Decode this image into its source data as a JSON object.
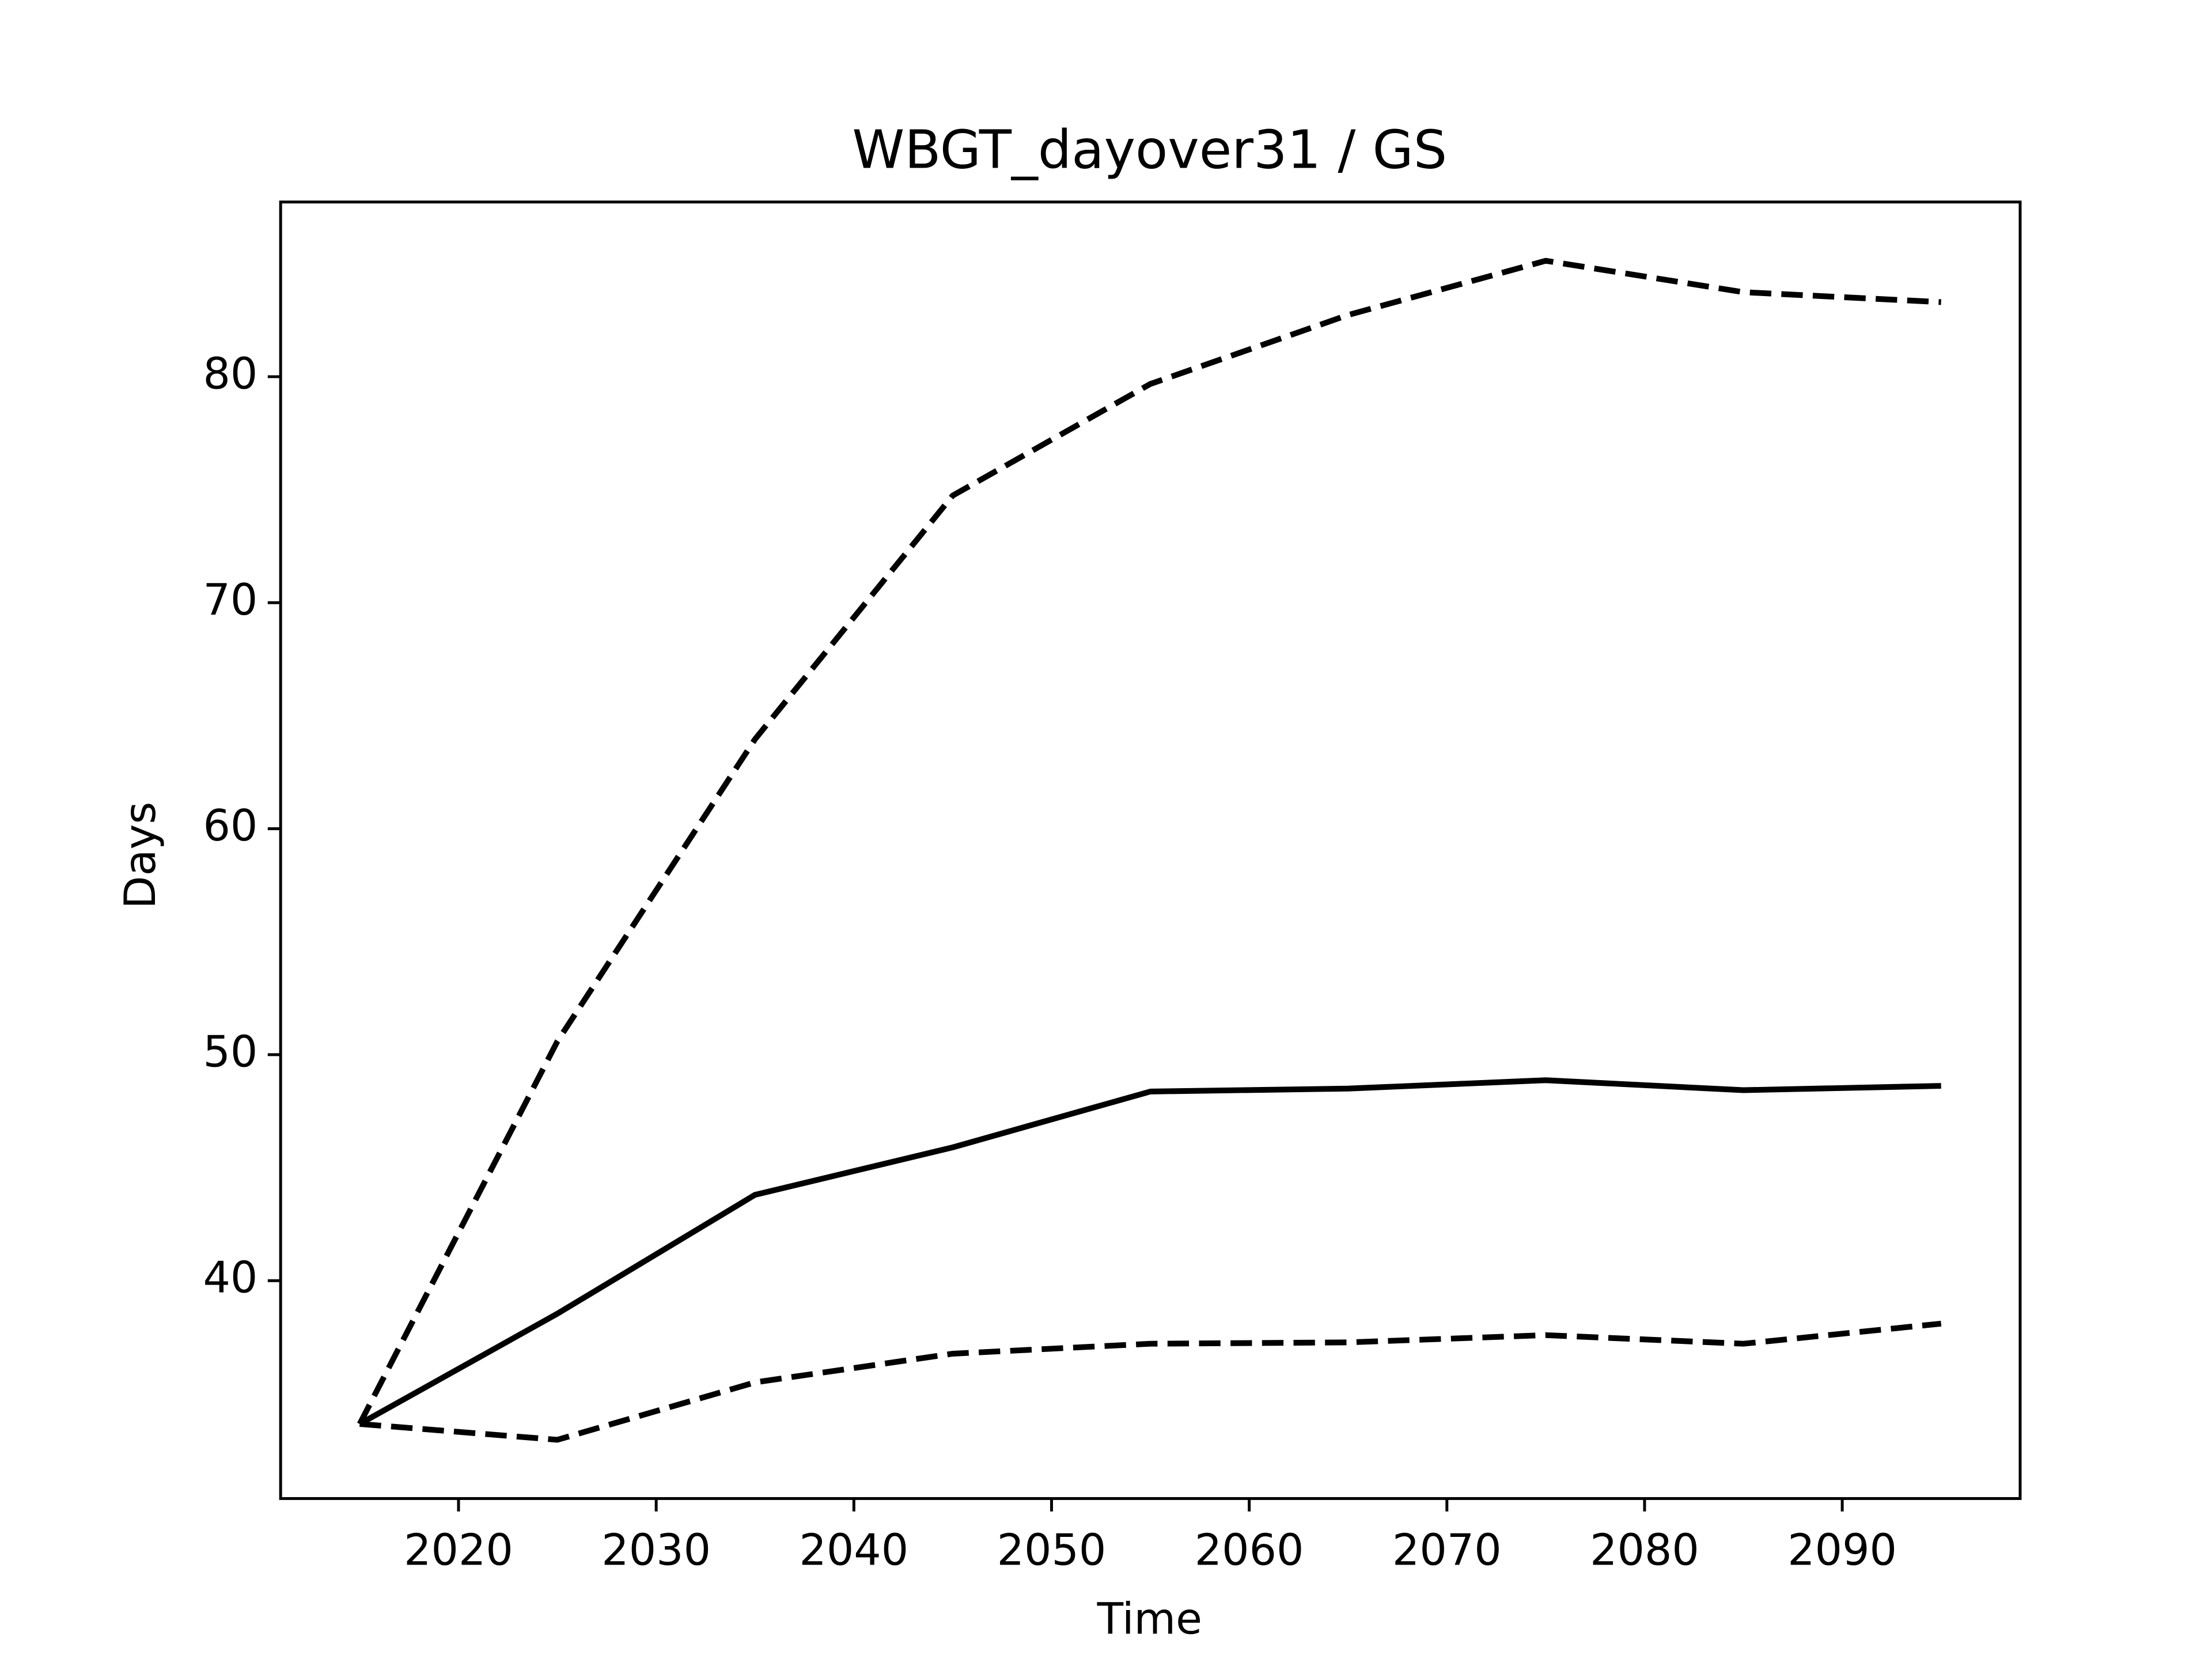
{
  "chart_data": {
    "type": "line",
    "title": "WBGT_dayover31 / GS",
    "xlabel": "Time",
    "ylabel": "Days",
    "x": [
      2015,
      2025,
      2035,
      2045,
      2055,
      2065,
      2075,
      2085,
      2095
    ],
    "series": [
      {
        "color": "#000000",
        "dashed": false,
        "values": [
          33.66,
          38.54,
          43.8,
          45.9,
          48.37,
          48.5,
          48.87,
          48.43,
          48.62
        ]
      },
      {
        "color": "#000000",
        "dashed": true,
        "values": [
          33.66,
          50.59,
          63.96,
          74.74,
          79.68,
          82.73,
          85.13,
          83.74,
          83.3
        ]
      },
      {
        "color": "#000000",
        "dashed": true,
        "values": [
          33.66,
          32.96,
          35.5,
          36.77,
          37.21,
          37.27,
          37.59,
          37.21,
          38.1
        ]
      }
    ],
    "xlim": [
      2011,
      2099
    ],
    "xticks": [
      2020,
      2030,
      2040,
      2050,
      2060,
      2070,
      2080,
      2090
    ],
    "ylim": [
      30.36,
      87.73
    ],
    "yticks": [
      40,
      50,
      60,
      70,
      80
    ],
    "grid": false
  }
}
